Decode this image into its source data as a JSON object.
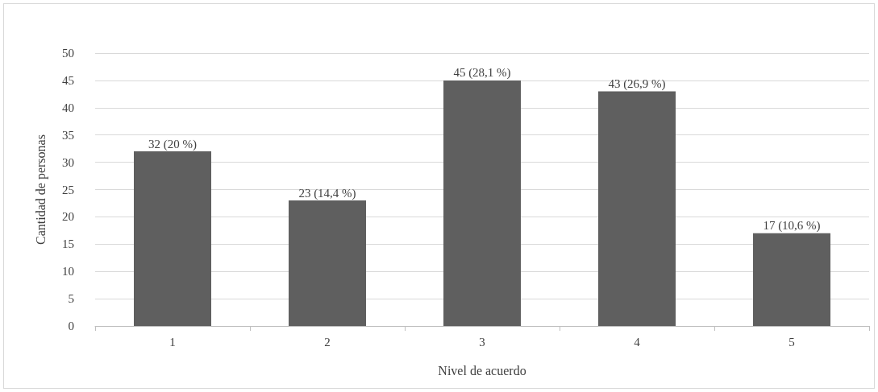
{
  "chart_data": {
    "type": "bar",
    "xlabel": "Nivel de acuerdo",
    "ylabel": "Cantidad de personas",
    "categories": [
      "1",
      "2",
      "3",
      "4",
      "5"
    ],
    "values": [
      32,
      23,
      45,
      43,
      17
    ],
    "value_labels": [
      "32 (20 %)",
      "23 (14,4 %)",
      "45 (28,1 %)",
      "43 (26,9 %)",
      "17 (10,6 %)"
    ],
    "color": "#5f5f5f",
    "ylim": [
      0,
      50
    ],
    "yticks": [
      0,
      5,
      10,
      15,
      20,
      25,
      30,
      35,
      40,
      45,
      50
    ],
    "grid": "y"
  }
}
